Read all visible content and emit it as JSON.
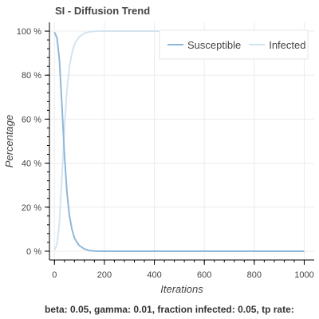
{
  "chart_data": {
    "type": "line",
    "title": "SI - Diffusion Trend",
    "xlabel": "Iterations",
    "ylabel": "Percentage",
    "xlim": [
      -20,
      1040
    ],
    "ylim": [
      -4,
      104
    ],
    "x_ticks": [
      0,
      200,
      400,
      600,
      800,
      1000
    ],
    "x_tick_labels": [
      "0",
      "200",
      "400",
      "600",
      "800",
      "1000"
    ],
    "y_ticks": [
      0,
      20,
      40,
      60,
      80,
      100
    ],
    "y_tick_labels": [
      "0 %",
      "20 %",
      "40 %",
      "60 %",
      "80 %",
      "100 %"
    ],
    "grid": true,
    "legend_position": "top-right",
    "caption": "beta: 0.05, gamma: 0.01, fraction infected: 0.05, tp rate:",
    "series": [
      {
        "name": "Susceptible",
        "color": "#8fb8d8",
        "x": [
          0,
          10,
          20,
          30,
          40,
          50,
          60,
          70,
          80,
          90,
          100,
          120,
          140,
          160,
          180,
          200,
          300,
          400,
          500,
          600,
          700,
          800,
          900,
          1000
        ],
        "y": [
          99.5,
          97,
          87,
          66,
          44,
          27,
          16,
          10,
          6,
          4,
          2.5,
          1,
          0.3,
          0.1,
          0,
          0,
          0,
          0,
          0,
          0,
          0,
          0,
          0,
          0
        ]
      },
      {
        "name": "Infected",
        "color": "#d3e4f0",
        "x": [
          0,
          10,
          20,
          30,
          40,
          50,
          60,
          70,
          80,
          90,
          100,
          120,
          140,
          160,
          180,
          200,
          300,
          400,
          500,
          600,
          700,
          800,
          900,
          1000
        ],
        "y": [
          0.5,
          3,
          13,
          34,
          56,
          73,
          84,
          90,
          94,
          96,
          97.5,
          99,
          99.7,
          99.9,
          100,
          100,
          100,
          100,
          100,
          100,
          100,
          100,
          100,
          100
        ]
      }
    ]
  }
}
